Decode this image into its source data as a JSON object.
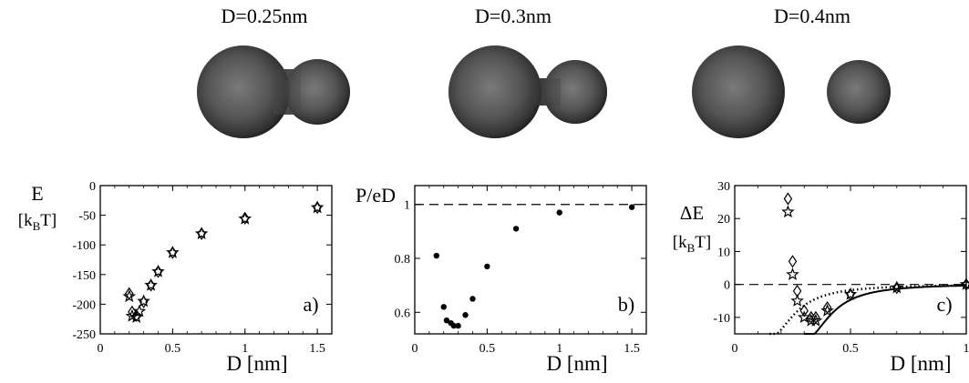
{
  "blobs": [
    {
      "label": "D=0.25nm",
      "shape": "merged"
    },
    {
      "label": "D=0.3nm",
      "shape": "necked"
    },
    {
      "label": "D=0.4nm",
      "shape": "separated"
    }
  ],
  "chart_data": [
    {
      "type": "scatter",
      "panel_label": "a)",
      "ylabel_line1": "E",
      "ylabel_line2_main": "[k",
      "ylabel_line2_sub": "B",
      "ylabel_line2_end": "T]",
      "xlabel": "D [nm]",
      "xlim": [
        0,
        1.6
      ],
      "ylim": [
        -250,
        0
      ],
      "xticks": [
        0,
        0.5,
        1,
        1.5
      ],
      "yticks": [
        0,
        -50,
        -100,
        -150,
        -200,
        -250
      ],
      "series": [
        {
          "marker": "diamond",
          "points": [
            [
              0.2,
              -182
            ],
            [
              0.22,
              -213
            ],
            [
              0.25,
              -219
            ],
            [
              0.3,
              -196
            ],
            [
              0.35,
              -168
            ],
            [
              0.4,
              -145
            ],
            [
              0.5,
              -113
            ],
            [
              0.7,
              -81
            ],
            [
              1.0,
              -55
            ],
            [
              1.5,
              -37
            ]
          ]
        },
        {
          "marker": "star",
          "points": [
            [
              0.2,
              -187
            ],
            [
              0.22,
              -220
            ],
            [
              0.25,
              -222
            ],
            [
              0.27,
              -212
            ],
            [
              0.3,
              -195
            ],
            [
              0.35,
              -168
            ],
            [
              0.4,
              -145
            ],
            [
              0.5,
              -113
            ],
            [
              0.7,
              -81
            ],
            [
              1.0,
              -56
            ],
            [
              1.5,
              -37
            ]
          ]
        }
      ]
    },
    {
      "type": "scatter",
      "panel_label": "b)",
      "ylabel": "P/eD",
      "xlabel": "D [nm]",
      "xlim": [
        0,
        1.6
      ],
      "ylim": [
        0.52,
        1.07
      ],
      "xticks": [
        0,
        0.5,
        1,
        1.5
      ],
      "yticks": [
        0.6,
        0.8,
        1
      ],
      "reference_line": 1.0,
      "series": [
        {
          "marker": "dot",
          "points": [
            [
              0.15,
              0.81
            ],
            [
              0.2,
              0.62
            ],
            [
              0.22,
              0.57
            ],
            [
              0.25,
              0.56
            ],
            [
              0.27,
              0.55
            ],
            [
              0.3,
              0.55
            ],
            [
              0.35,
              0.59
            ],
            [
              0.4,
              0.65
            ],
            [
              0.5,
              0.77
            ],
            [
              0.7,
              0.91
            ],
            [
              1.0,
              0.97
            ],
            [
              1.5,
              0.99
            ]
          ]
        }
      ]
    },
    {
      "type": "scatter",
      "panel_label": "c)",
      "ylabel_line1": "ΔE",
      "ylabel_line2_main": "[k",
      "ylabel_line2_sub": "B",
      "ylabel_line2_end": "T]",
      "xlabel": "D [nm]",
      "xlim": [
        0,
        1
      ],
      "ylim": [
        -15,
        30
      ],
      "xticks": [
        0,
        0.5,
        1
      ],
      "yticks": [
        30,
        20,
        10,
        0,
        -10
      ],
      "reference_line": 0,
      "series": [
        {
          "marker": "diamond",
          "points": [
            [
              0.23,
              26
            ],
            [
              0.25,
              7
            ],
            [
              0.27,
              -2
            ],
            [
              0.3,
              -8
            ],
            [
              0.33,
              -10
            ],
            [
              0.35,
              -10
            ],
            [
              0.4,
              -7
            ],
            [
              0.5,
              -3
            ],
            [
              0.7,
              -1
            ],
            [
              1.0,
              0
            ]
          ]
        },
        {
          "marker": "star",
          "points": [
            [
              0.23,
              22
            ],
            [
              0.25,
              3
            ],
            [
              0.27,
              -5
            ],
            [
              0.3,
              -10
            ],
            [
              0.33,
              -11
            ],
            [
              0.35,
              -11
            ],
            [
              0.4,
              -8
            ],
            [
              0.5,
              -3
            ],
            [
              0.7,
              -1
            ],
            [
              1.0,
              0
            ]
          ]
        }
      ],
      "curves": [
        {
          "style": "solid",
          "x0": 0.3,
          "xmin": 0.3,
          "xmax": 1.0
        },
        {
          "style": "dotted",
          "x0": 0.15,
          "xmin": 0.15,
          "xmax": 1.0
        }
      ]
    }
  ]
}
